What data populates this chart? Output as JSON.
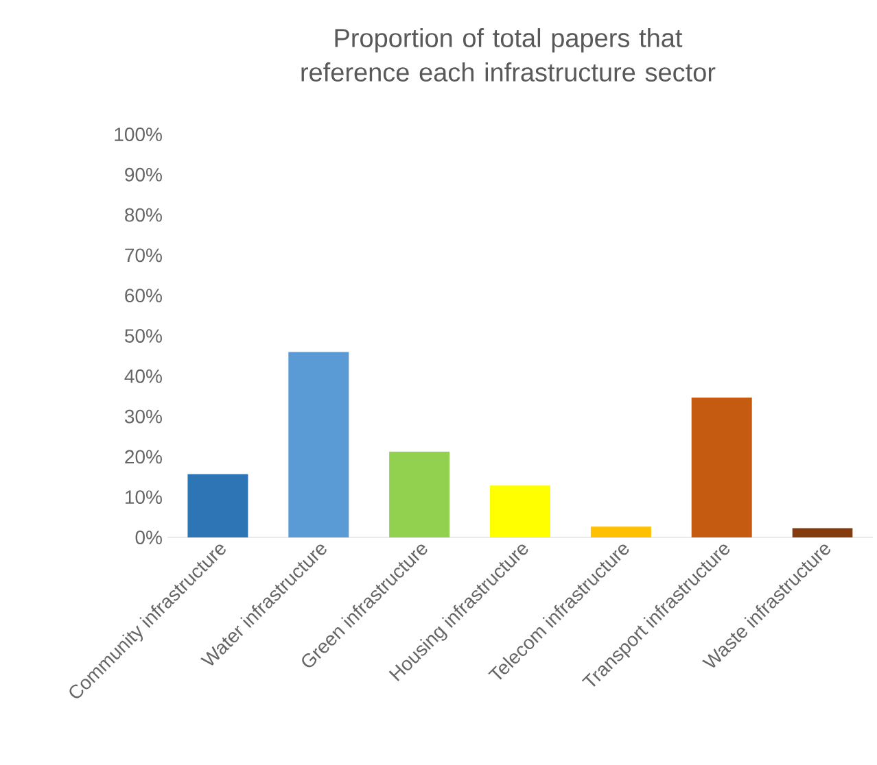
{
  "chart_data": {
    "type": "bar",
    "title": "Proportion of total papers that reference each infrastructure sector",
    "categories": [
      "Community infrastructure",
      "Water infrastructure",
      "Green infrastructure",
      "Housing infrastructure",
      "Telecom infrastructure",
      "Transport infrastructure",
      "Waste infrastructure"
    ],
    "values": [
      15.7,
      46.0,
      21.3,
      12.9,
      2.7,
      34.7,
      2.3
    ],
    "colors": [
      "#2e75b6",
      "#5b9bd5",
      "#92d050",
      "#ffff00",
      "#ffc000",
      "#c55a11",
      "#843c0c"
    ],
    "ylim": [
      0,
      100
    ],
    "yticks": [
      {
        "value": 0,
        "label": "0%"
      },
      {
        "value": 10,
        "label": "10%"
      },
      {
        "value": 20,
        "label": "20%"
      },
      {
        "value": 30,
        "label": "30%"
      },
      {
        "value": 40,
        "label": "40%"
      },
      {
        "value": 50,
        "label": "50%"
      },
      {
        "value": 60,
        "label": "60%"
      },
      {
        "value": 70,
        "label": "70%"
      },
      {
        "value": 80,
        "label": "80%"
      },
      {
        "value": 90,
        "label": "90%"
      },
      {
        "value": 100,
        "label": "100%"
      }
    ]
  }
}
